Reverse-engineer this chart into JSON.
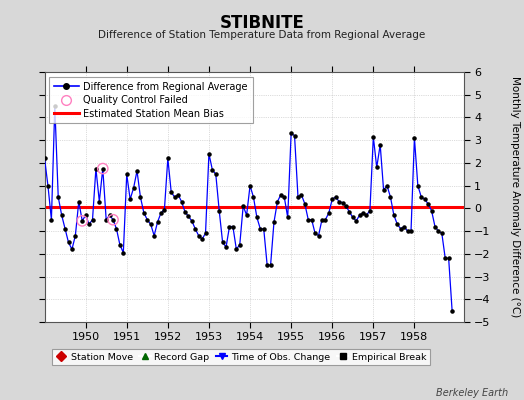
{
  "title": "STIBNITE",
  "subtitle": "Difference of Station Temperature Data from Regional Average",
  "ylabel": "Monthly Temperature Anomaly Difference (°C)",
  "xlabel_years": [
    1950,
    1951,
    1952,
    1953,
    1954,
    1955,
    1956,
    1957,
    1958
  ],
  "ylim": [
    -5,
    6
  ],
  "bias_value": 0.05,
  "line_color": "#0000ff",
  "dot_color": "#000000",
  "bias_color": "#ff0000",
  "bg_color": "#d8d8d8",
  "plot_bg_color": "#ffffff",
  "watermark": "Berkeley Earth",
  "qc_failed_times": [
    1949.917,
    1950.417,
    1950.667
  ],
  "qc_failed_values": [
    -0.55,
    1.75,
    -0.5
  ],
  "time_series": {
    "times": [
      1949.0,
      1949.083,
      1949.167,
      1949.25,
      1949.333,
      1949.417,
      1949.5,
      1949.583,
      1949.667,
      1949.75,
      1949.833,
      1949.917,
      1950.0,
      1950.083,
      1950.167,
      1950.25,
      1950.333,
      1950.417,
      1950.5,
      1950.583,
      1950.667,
      1950.75,
      1950.833,
      1950.917,
      1951.0,
      1951.083,
      1951.167,
      1951.25,
      1951.333,
      1951.417,
      1951.5,
      1951.583,
      1951.667,
      1951.75,
      1951.833,
      1951.917,
      1952.0,
      1952.083,
      1952.167,
      1952.25,
      1952.333,
      1952.417,
      1952.5,
      1952.583,
      1952.667,
      1952.75,
      1952.833,
      1952.917,
      1953.0,
      1953.083,
      1953.167,
      1953.25,
      1953.333,
      1953.417,
      1953.5,
      1953.583,
      1953.667,
      1953.75,
      1953.833,
      1953.917,
      1954.0,
      1954.083,
      1954.167,
      1954.25,
      1954.333,
      1954.417,
      1954.5,
      1954.583,
      1954.667,
      1954.75,
      1954.833,
      1954.917,
      1955.0,
      1955.083,
      1955.167,
      1955.25,
      1955.333,
      1955.417,
      1955.5,
      1955.583,
      1955.667,
      1955.75,
      1955.833,
      1955.917,
      1956.0,
      1956.083,
      1956.167,
      1956.25,
      1956.333,
      1956.417,
      1956.5,
      1956.583,
      1956.667,
      1956.75,
      1956.833,
      1956.917,
      1957.0,
      1957.083,
      1957.167,
      1957.25,
      1957.333,
      1957.417,
      1957.5,
      1957.583,
      1957.667,
      1957.75,
      1957.833,
      1957.917,
      1958.0,
      1958.083,
      1958.167,
      1958.25,
      1958.333,
      1958.417,
      1958.5,
      1958.583,
      1958.667,
      1958.75,
      1958.833,
      1958.917
    ],
    "values": [
      2.2,
      1.0,
      -0.5,
      4.5,
      0.5,
      -0.3,
      -0.9,
      -1.5,
      -1.8,
      -1.2,
      0.3,
      -0.55,
      -0.3,
      -0.7,
      -0.5,
      1.75,
      0.3,
      1.75,
      -0.5,
      -0.3,
      -0.5,
      -0.9,
      -1.6,
      -1.95,
      1.5,
      0.4,
      0.9,
      1.65,
      0.5,
      -0.2,
      -0.5,
      -0.7,
      -1.2,
      -0.6,
      -0.2,
      -0.05,
      2.2,
      0.7,
      0.5,
      0.6,
      0.3,
      -0.15,
      -0.35,
      -0.55,
      -0.9,
      -1.2,
      -1.35,
      -1.1,
      2.4,
      1.7,
      1.5,
      -0.1,
      -1.5,
      -1.7,
      -0.8,
      -0.8,
      -1.8,
      -1.6,
      0.1,
      -0.3,
      1.0,
      0.5,
      -0.4,
      -0.9,
      -0.9,
      -2.5,
      -2.5,
      -0.6,
      0.3,
      0.6,
      0.5,
      -0.4,
      3.3,
      3.2,
      0.5,
      0.6,
      0.2,
      -0.5,
      -0.5,
      -1.1,
      -1.2,
      -0.5,
      -0.5,
      -0.2,
      0.4,
      0.5,
      0.3,
      0.25,
      0.1,
      -0.15,
      -0.4,
      -0.55,
      -0.3,
      -0.2,
      -0.3,
      -0.1,
      3.15,
      1.8,
      2.8,
      0.8,
      1.0,
      0.5,
      -0.3,
      -0.7,
      -0.9,
      -0.8,
      -1.0,
      -1.0,
      3.1,
      1.0,
      0.5,
      0.4,
      0.2,
      -0.1,
      -0.8,
      -1.0,
      -1.1,
      -2.2,
      -2.2,
      -4.5
    ]
  }
}
